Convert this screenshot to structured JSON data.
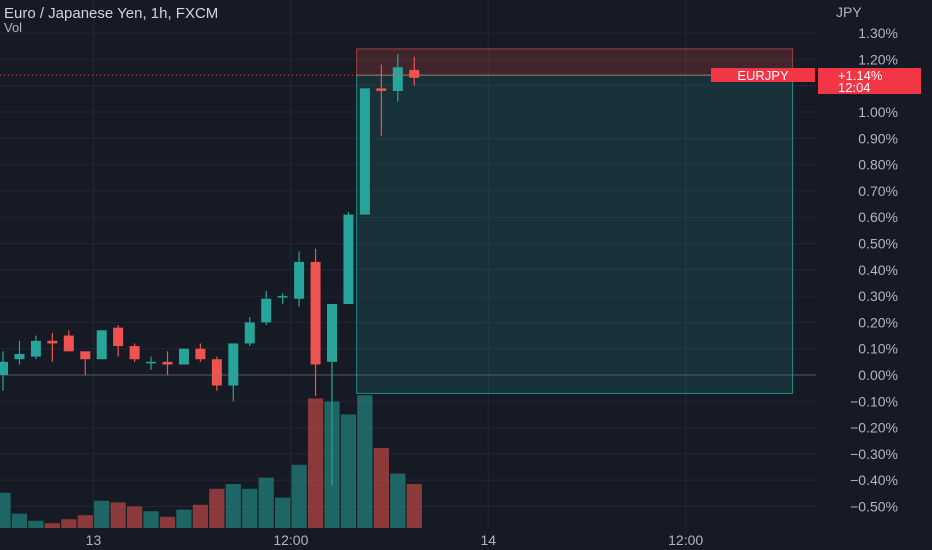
{
  "header": {
    "title": "Euro / Japanese Yen, 1h, FXCM",
    "sub": "Vol"
  },
  "currency": "JPY",
  "badge": {
    "symbol": "EURJPY",
    "change": "+1.14%",
    "countdown": "12:04"
  },
  "colors": {
    "bg": "#161a25",
    "up": "#26a69a",
    "down": "#ef5350",
    "grid": "#2a2e39",
    "text": "#b2b5be",
    "badge": "#f23645"
  },
  "chart_data": {
    "type": "candlestick",
    "title": "Euro / Japanese Yen, 1h, FXCM",
    "y_unit": "percent change",
    "ylim": [
      -0.55,
      1.37
    ],
    "y_ticks": [
      1.3,
      1.2,
      1.1,
      1.0,
      0.9,
      0.8,
      0.7,
      0.6,
      0.5,
      0.4,
      0.3,
      0.2,
      0.1,
      0.0,
      -0.1,
      -0.2,
      -0.3,
      -0.4,
      -0.5
    ],
    "y_tick_labels": [
      "1.30%",
      "1.20%",
      "1.10%",
      "1.00%",
      "0.90%",
      "0.80%",
      "0.70%",
      "0.60%",
      "0.50%",
      "0.40%",
      "0.30%",
      "0.20%",
      "0.10%",
      "0.00%",
      "−0.10%",
      "−0.20%",
      "−0.30%",
      "−0.40%",
      "−0.50%"
    ],
    "x_tick_labels": [
      {
        "label": "13",
        "bar": 5.5
      },
      {
        "label": "12:00",
        "bar": 17.5
      },
      {
        "label": "14",
        "bar": 29.5
      },
      {
        "label": "12:00",
        "bar": 41.5
      }
    ],
    "candles": [
      {
        "o": 0.0,
        "h": 0.09,
        "l": -0.06,
        "c": 0.05,
        "v": 0.44
      },
      {
        "o": 0.06,
        "h": 0.13,
        "l": 0.04,
        "c": 0.08,
        "v": 0.18
      },
      {
        "o": 0.07,
        "h": 0.15,
        "l": 0.06,
        "c": 0.13,
        "v": 0.09
      },
      {
        "o": 0.13,
        "h": 0.16,
        "l": 0.05,
        "c": 0.12,
        "v": 0.06
      },
      {
        "o": 0.15,
        "h": 0.17,
        "l": 0.09,
        "c": 0.09,
        "v": 0.11
      },
      {
        "o": 0.09,
        "h": 0.09,
        "l": 0.0,
        "c": 0.06,
        "v": 0.16
      },
      {
        "o": 0.06,
        "h": 0.17,
        "l": 0.06,
        "c": 0.17,
        "v": 0.34
      },
      {
        "o": 0.18,
        "h": 0.19,
        "l": 0.07,
        "c": 0.11,
        "v": 0.32
      },
      {
        "o": 0.11,
        "h": 0.12,
        "l": 0.05,
        "c": 0.06,
        "v": 0.27
      },
      {
        "o": 0.05,
        "h": 0.07,
        "l": 0.02,
        "c": 0.05,
        "v": 0.21
      },
      {
        "o": 0.05,
        "h": 0.09,
        "l": 0.0,
        "c": 0.04,
        "v": 0.14
      },
      {
        "o": 0.04,
        "h": 0.1,
        "l": 0.04,
        "c": 0.1,
        "v": 0.23
      },
      {
        "o": 0.1,
        "h": 0.12,
        "l": 0.05,
        "c": 0.06,
        "v": 0.29
      },
      {
        "o": 0.06,
        "h": 0.07,
        "l": -0.06,
        "c": -0.04,
        "v": 0.49
      },
      {
        "o": -0.04,
        "h": 0.11,
        "l": -0.1,
        "c": 0.12,
        "v": 0.55
      },
      {
        "o": 0.12,
        "h": 0.22,
        "l": 0.11,
        "c": 0.2,
        "v": 0.49
      },
      {
        "o": 0.2,
        "h": 0.32,
        "l": 0.19,
        "c": 0.29,
        "v": 0.63
      },
      {
        "o": 0.3,
        "h": 0.31,
        "l": 0.27,
        "c": 0.3,
        "v": 0.38
      },
      {
        "o": 0.29,
        "h": 0.47,
        "l": 0.26,
        "c": 0.43,
        "v": 0.79
      },
      {
        "o": 0.43,
        "h": 0.48,
        "l": -0.08,
        "c": 0.04,
        "v": 1.62
      },
      {
        "o": 0.05,
        "h": 0.27,
        "l": -0.42,
        "c": 0.27,
        "v": 1.58
      },
      {
        "o": 0.27,
        "h": 0.62,
        "l": 0.27,
        "c": 0.61,
        "v": 1.42
      },
      {
        "o": 0.61,
        "h": 1.09,
        "l": 0.61,
        "c": 1.09,
        "v": 1.66
      },
      {
        "o": 1.09,
        "h": 1.18,
        "l": 0.91,
        "c": 1.08,
        "v": 1.0
      },
      {
        "o": 1.08,
        "h": 1.22,
        "l": 1.04,
        "c": 1.17,
        "v": 0.68
      },
      {
        "o": 1.16,
        "h": 1.21,
        "l": 1.1,
        "c": 1.13,
        "v": 0.55
      }
    ],
    "position": {
      "entry": 1.14,
      "stop": 1.24,
      "target": -0.07,
      "start_bar": 21.5,
      "end_bar": 48
    },
    "last_price_pct": 1.14
  }
}
